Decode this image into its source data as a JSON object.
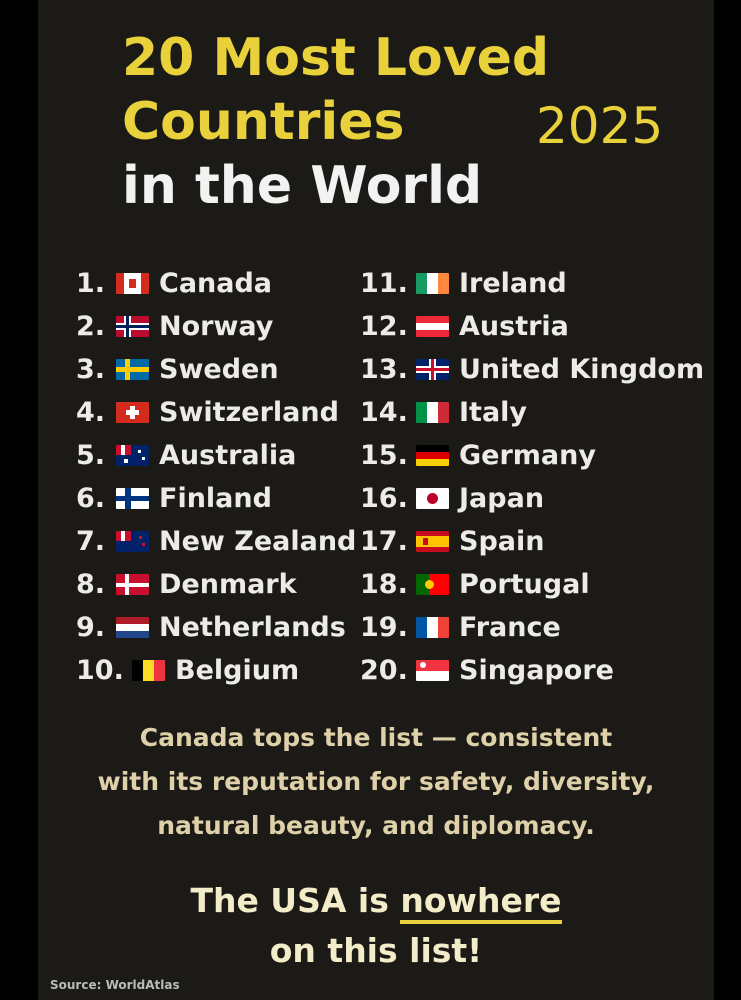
{
  "title": {
    "line1": "20 Most Loved",
    "line2": "Countries",
    "line3": "in the World",
    "year": "2025"
  },
  "countries": [
    {
      "rank": "1.",
      "name": "Canada",
      "flag": "canada-flag-icon"
    },
    {
      "rank": "2.",
      "name": "Norway",
      "flag": "norway-flag-icon"
    },
    {
      "rank": "3.",
      "name": "Sweden",
      "flag": "sweden-flag-icon"
    },
    {
      "rank": "4.",
      "name": "Switzerland",
      "flag": "switzerland-flag-icon"
    },
    {
      "rank": "5.",
      "name": "Australia",
      "flag": "australia-flag-icon"
    },
    {
      "rank": "6.",
      "name": "Finland",
      "flag": "finland-flag-icon"
    },
    {
      "rank": "7.",
      "name": "New Zealand",
      "flag": "new-zealand-flag-icon"
    },
    {
      "rank": "8.",
      "name": "Denmark",
      "flag": "denmark-flag-icon"
    },
    {
      "rank": "9.",
      "name": "Netherlands",
      "flag": "netherlands-flag-icon"
    },
    {
      "rank": "10.",
      "name": "Belgium",
      "flag": "belgium-flag-icon"
    },
    {
      "rank": "11.",
      "name": "Ireland",
      "flag": "ireland-flag-icon"
    },
    {
      "rank": "12.",
      "name": "Austria",
      "flag": "austria-flag-icon"
    },
    {
      "rank": "13.",
      "name": "United Kingdom",
      "flag": "united-kingdom-flag-icon"
    },
    {
      "rank": "14.",
      "name": "Italy",
      "flag": "italy-flag-icon"
    },
    {
      "rank": "15.",
      "name": "Germany",
      "flag": "germany-flag-icon"
    },
    {
      "rank": "16.",
      "name": "Japan",
      "flag": "japan-flag-icon"
    },
    {
      "rank": "17.",
      "name": "Spain",
      "flag": "spain-flag-icon"
    },
    {
      "rank": "18.",
      "name": "Portugal",
      "flag": "portugal-flag-icon"
    },
    {
      "rank": "19.",
      "name": "France",
      "flag": "france-flag-icon"
    },
    {
      "rank": "20.",
      "name": "Singapore",
      "flag": "singapore-flag-icon"
    }
  ],
  "tagline": {
    "line1": "Canada tops the list — consistent",
    "line2": "with its reputation for safety, diversity,",
    "line3": "natural beauty, and diplomacy."
  },
  "usa_note": {
    "before": "The USA is ",
    "emphasis": "nowhere",
    "line2": "on this list!"
  },
  "source": "Source: WorldAtlas",
  "colors": {
    "background": "#1c1a16",
    "accent_yellow": "#e8d13a",
    "text_white": "#ecebe6",
    "tagline_cream": "#ded0a8"
  }
}
